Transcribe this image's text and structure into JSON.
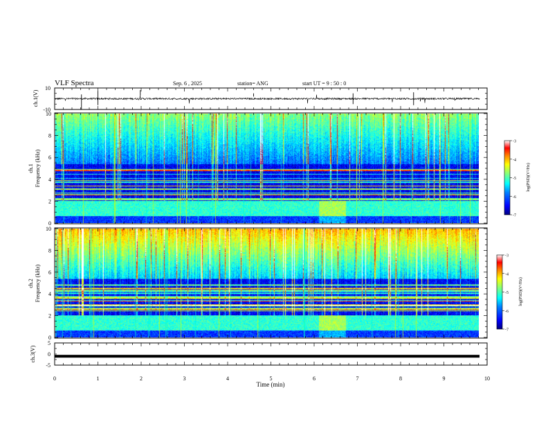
{
  "header": {
    "title": "VLF Spectra",
    "date": "Sep. 6 , 2025",
    "station": "station= ANG",
    "start": "start UT = 9 : 50 : 0"
  },
  "chart_data": [
    {
      "type": "line",
      "panel": "ch1-waveform",
      "ylabel": "ch.1(V)",
      "ylim": [
        -10,
        10
      ],
      "yticks": [
        "10",
        "-10"
      ],
      "xlim": [
        0,
        10
      ],
      "baseline_v": 0
    },
    {
      "type": "heatmap",
      "panel": "ch1-spectrogram",
      "ylabel": "ch.1 Frequency (kHz)",
      "ylabel_l1": "ch.1",
      "ylabel_l2": "Frequency (kHz)",
      "ylim": [
        0,
        10
      ],
      "yticks": [
        "0",
        "2",
        "4",
        "6",
        "8",
        "10"
      ],
      "xlim": [
        0,
        10
      ],
      "colorbar": {
        "label": "log(PSD)(V²/Hz)",
        "range": [
          -7,
          -3
        ],
        "ticks": [
          "-3",
          "-4",
          "-5",
          "-6",
          "-7"
        ]
      },
      "colormap": [
        "#00007f",
        "#0000ff",
        "#0080ff",
        "#00ffff",
        "#80ff80",
        "#ffff00",
        "#ff8000",
        "#ff0000",
        "#ffffff"
      ]
    },
    {
      "type": "heatmap",
      "panel": "ch2-spectrogram",
      "ylabel": "ch.2 Frequency (kHz)",
      "ylabel_l1": "ch.2",
      "ylabel_l2": "Frequency (kHz)",
      "ylim": [
        0,
        10
      ],
      "yticks": [
        "0",
        "2",
        "4",
        "6",
        "8",
        "10"
      ],
      "xlim": [
        0,
        10
      ],
      "colorbar": {
        "label": "log(PSD)(V²/Hz)",
        "range": [
          -7,
          -3
        ],
        "ticks": [
          "-3",
          "-4",
          "-5",
          "-6",
          "-7"
        ]
      },
      "colormap": [
        "#00007f",
        "#0000ff",
        "#0080ff",
        "#00ffff",
        "#80ff80",
        "#ffff00",
        "#ff8000",
        "#ff0000",
        "#ffffff"
      ]
    },
    {
      "type": "line",
      "panel": "ch3-waveform",
      "ylabel": "ch.3(V)",
      "ylim": [
        -5,
        5
      ],
      "yticks": [
        "5",
        "0",
        "-5"
      ],
      "xlim": [
        0,
        10
      ],
      "value_v": -1,
      "xlabel": "Time (min)",
      "xticks": [
        "0",
        "1",
        "2",
        "3",
        "4",
        "5",
        "6",
        "7",
        "8",
        "9",
        "10"
      ]
    }
  ]
}
